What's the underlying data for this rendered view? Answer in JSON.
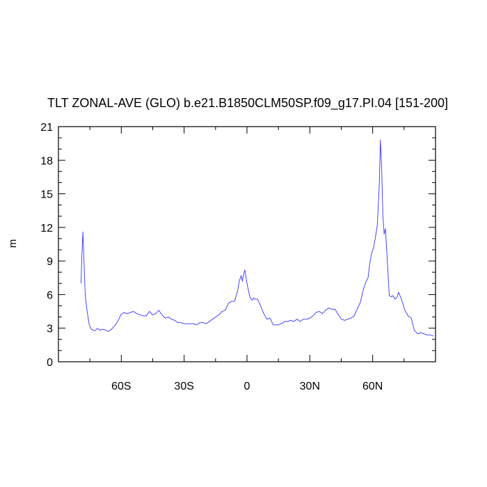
{
  "chart_data": {
    "type": "line",
    "title": "TLT ZONAL-AVE (GLO) b.e21.B1850CLM50SP.f09_g17.PI.04 [151-200]",
    "xlabel": "",
    "ylabel": "m",
    "xlim": [
      -90,
      90
    ],
    "ylim": [
      0,
      21
    ],
    "xticks": [
      -60,
      -30,
      0,
      30,
      60
    ],
    "xtick_labels": [
      "60S",
      "30S",
      "0",
      "30N",
      "60N"
    ],
    "yticks": [
      0,
      3,
      6,
      9,
      12,
      15,
      18,
      21
    ],
    "ytick_labels": [
      "0",
      "3",
      "6",
      "9",
      "12",
      "15",
      "18",
      "21"
    ],
    "grid": false,
    "line_color": "#3333ff",
    "series": [
      {
        "x": [
          -79.2,
          -78.8,
          -78.3,
          -77.8,
          -77.2,
          -76.8,
          -76.3,
          -75.3,
          -74.3,
          -73.3,
          -72.3,
          -71.3,
          -70.3,
          -69.3,
          -68.3,
          -67.3,
          -66.3,
          -64.7,
          -63.2,
          -61.7,
          -60.2,
          -58.7,
          -57.2,
          -55.7,
          -54.2,
          -52.6,
          -51.1,
          -49.6,
          -48.1,
          -46.6,
          -45.1,
          -43.6,
          -42.1,
          -40.6,
          -39.1,
          -37.6,
          -36.0,
          -34.5,
          -33.0,
          -31.5,
          -30.0,
          -28.5,
          -27.0,
          -25.5,
          -24.0,
          -22.5,
          -21.0,
          -19.4,
          -17.9,
          -16.4,
          -14.9,
          -13.4,
          -11.9,
          -10.4,
          -8.9,
          -7.4,
          -5.9,
          -4.3,
          -3.7,
          -2.8,
          -2.2,
          -1.6,
          -1.0,
          -0.4,
          0.2,
          0.8,
          1.4,
          2.0,
          2.6,
          3.2,
          3.8,
          4.4,
          5.0,
          6.5,
          8.0,
          9.5,
          11.0,
          12.5,
          13.4,
          14.9,
          16.4,
          17.9,
          19.4,
          20.9,
          22.4,
          23.9,
          25.4,
          26.9,
          28.5,
          30.0,
          31.5,
          33.0,
          34.5,
          36.0,
          37.5,
          39.0,
          40.5,
          42.0,
          43.6,
          45.1,
          46.6,
          48.1,
          49.6,
          51.1,
          52.6,
          54.1,
          55.6,
          56.9,
          57.8,
          58.6,
          59.5,
          60.4,
          61.3,
          62.2,
          63.1,
          63.7,
          64.3,
          64.9,
          65.5,
          66.1,
          67.0,
          67.9,
          68.8,
          69.7,
          70.6,
          71.5,
          72.4,
          73.9,
          75.4,
          76.9,
          78.4,
          79.9,
          81.5,
          83.0,
          84.5,
          86.0,
          87.5,
          89.0
        ],
        "y": [
          7.0,
          9.5,
          11.6,
          9.0,
          6.0,
          5.3,
          4.5,
          3.3,
          2.9,
          2.8,
          2.8,
          3.0,
          2.8,
          2.9,
          2.9,
          2.8,
          2.7,
          2.9,
          3.2,
          3.6,
          4.2,
          4.4,
          4.3,
          4.4,
          4.5,
          4.3,
          4.2,
          4.1,
          4.1,
          4.5,
          4.2,
          4.3,
          4.6,
          4.2,
          3.9,
          4.0,
          3.8,
          3.7,
          3.5,
          3.5,
          3.4,
          3.4,
          3.4,
          3.4,
          3.3,
          3.5,
          3.5,
          3.4,
          3.6,
          3.8,
          4.0,
          4.2,
          4.5,
          4.6,
          5.2,
          5.4,
          5.4,
          6.5,
          7.2,
          7.7,
          7.2,
          7.8,
          8.2,
          7.5,
          6.8,
          6.3,
          5.8,
          5.6,
          5.5,
          5.7,
          5.6,
          5.6,
          5.6,
          5.0,
          4.3,
          3.8,
          3.9,
          3.3,
          3.3,
          3.3,
          3.4,
          3.6,
          3.6,
          3.7,
          3.6,
          3.8,
          3.6,
          3.8,
          3.8,
          3.9,
          4.1,
          4.4,
          4.5,
          4.3,
          4.6,
          4.8,
          4.7,
          4.7,
          4.2,
          3.8,
          3.7,
          3.8,
          3.9,
          4.1,
          4.7,
          5.3,
          6.5,
          7.2,
          7.5,
          8.8,
          9.7,
          10.2,
          11.1,
          12.2,
          15.5,
          19.8,
          17.2,
          13.0,
          11.4,
          11.9,
          9.1,
          5.9,
          5.8,
          5.9,
          5.6,
          5.7,
          6.2,
          5.5,
          4.6,
          4.1,
          3.9,
          2.8,
          2.5,
          2.6,
          2.5,
          2.4,
          2.4,
          2.3
        ]
      }
    ]
  }
}
